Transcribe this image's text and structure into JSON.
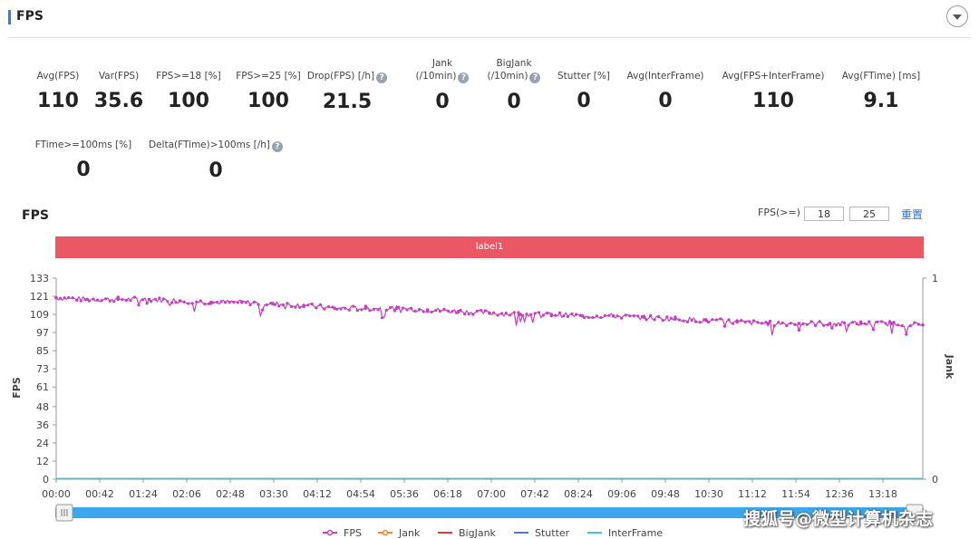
{
  "header": {
    "title": "FPS"
  },
  "metrics_row1": [
    {
      "label": "Avg(FPS)",
      "value": "110",
      "help": false
    },
    {
      "label": "Var(FPS)",
      "value": "35.6",
      "help": false
    },
    {
      "label": "FPS>=18 [%]",
      "value": "100",
      "help": false
    },
    {
      "label": "FPS>=25 [%]",
      "value": "100",
      "help": false
    },
    {
      "label": "Drop(FPS) [/h]",
      "value": "21.5",
      "help": true
    },
    {
      "label": "Jank",
      "label2": "(/10min)",
      "value": "0",
      "help": true
    },
    {
      "label": "BigJank",
      "label2": "(/10min)",
      "value": "0",
      "help": true
    },
    {
      "label": "Stutter [%]",
      "value": "0",
      "help": false
    },
    {
      "label": "Avg(InterFrame)",
      "value": "0",
      "help": false
    },
    {
      "label": "Avg(FPS+InterFrame)",
      "value": "110",
      "help": false
    },
    {
      "label": "Avg(FTime) [ms]",
      "value": "9.1",
      "help": false
    }
  ],
  "metrics_row2": [
    {
      "label": "FTime>=100ms [%]",
      "value": "0",
      "help": false
    },
    {
      "label": "Delta(FTime)>100ms [/h]",
      "value": "0",
      "help": true
    }
  ],
  "help_glyph": "?",
  "chart_section": {
    "title": "FPS",
    "fps_threshold_label": "FPS(>=)",
    "fps_threshold_1": "18",
    "fps_threshold_2": "25",
    "reset_label": "重置",
    "label_bar_text": "label1"
  },
  "watermark": "搜狐号@微型计算机杂志",
  "colors": {
    "fps": "#c63fc0",
    "jank": "#f08a24",
    "bigjank": "#e53935",
    "stutter": "#4a7bd9",
    "interframe": "#3bc9d9",
    "label_bar": "#ea5765",
    "scrollbar": "#3aa7ee"
  },
  "chart_data": {
    "type": "line",
    "ylabel": "FPS",
    "y2label": "Jank",
    "yticks": [
      0,
      12,
      24,
      36,
      48,
      61,
      73,
      85,
      97,
      109,
      121,
      133
    ],
    "ylim": [
      0,
      133
    ],
    "y2ticks": [
      0,
      1
    ],
    "y2lim": [
      0,
      1
    ],
    "xticks": [
      "00:00",
      "00:42",
      "01:24",
      "02:06",
      "02:48",
      "03:30",
      "04:12",
      "04:54",
      "05:36",
      "06:18",
      "07:00",
      "07:42",
      "08:24",
      "09:06",
      "09:48",
      "10:30",
      "11:12",
      "11:54",
      "12:36",
      "13:18"
    ],
    "x_range_seconds": [
      0,
      840
    ],
    "legend_position": "bottom",
    "legend": [
      "FPS",
      "Jank",
      "BigJank",
      "Stutter",
      "InterFrame"
    ],
    "series": [
      {
        "name": "FPS",
        "x_seconds": [
          0,
          30,
          60,
          90,
          120,
          150,
          180,
          210,
          240,
          270,
          300,
          330,
          360,
          390,
          420,
          450,
          480,
          510,
          540,
          570,
          600,
          630,
          660,
          690,
          720,
          750,
          780,
          810,
          840
        ],
        "values": [
          120,
          119,
          119,
          119,
          118,
          117,
          117,
          116,
          115,
          113,
          113,
          113,
          112,
          111,
          110,
          109,
          109,
          108,
          108,
          107,
          106,
          105,
          104,
          103,
          103,
          103,
          103,
          103,
          102
        ]
      },
      {
        "name": "Jank",
        "x_seconds": [
          0,
          840
        ],
        "values": [
          0,
          0
        ]
      },
      {
        "name": "BigJank",
        "x_seconds": [
          0,
          840
        ],
        "values": [
          0,
          0
        ]
      },
      {
        "name": "Stutter",
        "x_seconds": [
          0,
          840
        ],
        "values": [
          0,
          0
        ]
      },
      {
        "name": "InterFrame",
        "x_seconds": [
          0,
          840
        ],
        "values": [
          0,
          0
        ]
      }
    ]
  }
}
